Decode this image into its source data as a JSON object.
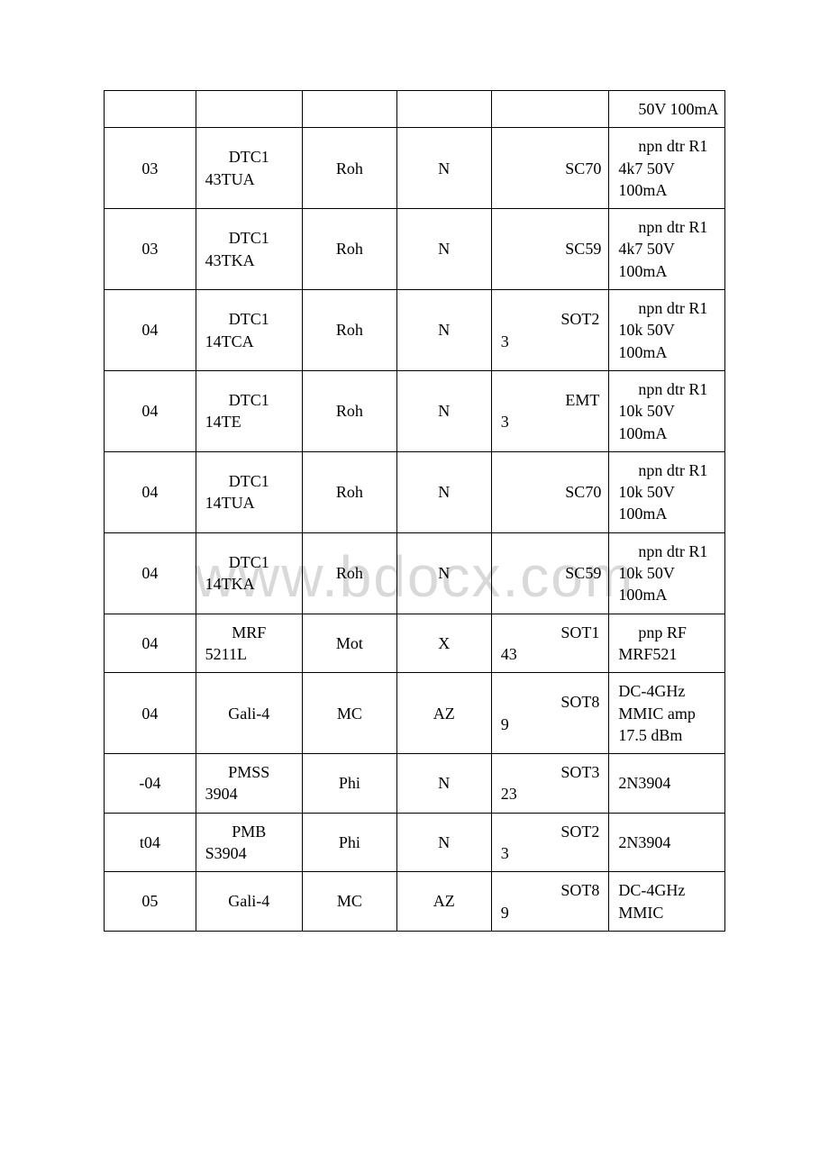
{
  "watermark": "www.bdocx.com",
  "table": {
    "columns": [
      {
        "key": "code",
        "align": "center"
      },
      {
        "key": "part",
        "align": "left-indent"
      },
      {
        "key": "mfr",
        "align": "center"
      },
      {
        "key": "type",
        "align": "center"
      },
      {
        "key": "pkg",
        "align": "split"
      },
      {
        "key": "desc",
        "align": "left"
      }
    ],
    "rows": [
      {
        "code": "",
        "part": "",
        "mfr": "",
        "type": "",
        "pkg_top": "",
        "pkg_bot": "",
        "desc": "50V 100mA"
      },
      {
        "code": "03",
        "part": "DTC143TUA",
        "mfr": "Roh",
        "type": "N",
        "pkg_top": "SC70",
        "pkg_bot": "",
        "desc": "npn dtr R1 4k7 50V 100mA"
      },
      {
        "code": "03",
        "part": "DTC143TKA",
        "mfr": "Roh",
        "type": "N",
        "pkg_top": "SC59",
        "pkg_bot": "",
        "desc": "npn dtr R1 4k7 50V 100mA"
      },
      {
        "code": "04",
        "part": "DTC114TCA",
        "mfr": "Roh",
        "type": "N",
        "pkg_top": "SOT23",
        "pkg_bot": "3",
        "desc": "npn dtr R1 10k 50V 100mA"
      },
      {
        "code": "04",
        "part": "DTC114TE",
        "mfr": "Roh",
        "type": "N",
        "pkg_top": "EMT3",
        "pkg_bot": "3",
        "desc": "npn dtr R1 10k 50V 100mA"
      },
      {
        "code": "04",
        "part": "DTC114TUA",
        "mfr": "Roh",
        "type": "N",
        "pkg_top": "SC70",
        "pkg_bot": "",
        "desc": "npn dtr R1 10k 50V 100mA"
      },
      {
        "code": "04",
        "part": "DTC114TKA",
        "mfr": "Roh",
        "type": "N",
        "pkg_top": "SC59",
        "pkg_bot": "",
        "desc": "npn dtr R1 10k 50V 100mA"
      },
      {
        "code": "04",
        "part": "MRF5211L",
        "mfr": "Mot",
        "type": "X",
        "pkg_top": "SOT143",
        "pkg_bot": "43",
        "desc": "pnp RF MRF521"
      },
      {
        "code": "04",
        "part": "Gali-4",
        "mfr": "MC",
        "type": "AZ",
        "pkg_top": "SOT89",
        "pkg_bot": "9",
        "desc": "DC-4GHz MMIC amp 17.5 dBm"
      },
      {
        "code": "-04",
        "part": "PMSS3904",
        "mfr": "Phi",
        "type": "N",
        "pkg_top": "SOT323",
        "pkg_bot": "23",
        "desc": "2N3904"
      },
      {
        "code": "t04",
        "part": "PMBS3904",
        "mfr": "Phi",
        "type": "N",
        "pkg_top": "SOT23",
        "pkg_bot": "3",
        "desc": "2N3904"
      },
      {
        "code": "05",
        "part": "Gali-4",
        "mfr": "MC",
        "type": "AZ",
        "pkg_top": "SOT89",
        "pkg_bot": "9",
        "desc": "DC-4GHz MMIC"
      }
    ]
  },
  "style": {
    "font_family": "Times New Roman",
    "font_size_pt": 14,
    "border_color": "#000000",
    "text_color": "#000000",
    "background_color": "#ffffff",
    "watermark_color": "#d9d9d9"
  }
}
